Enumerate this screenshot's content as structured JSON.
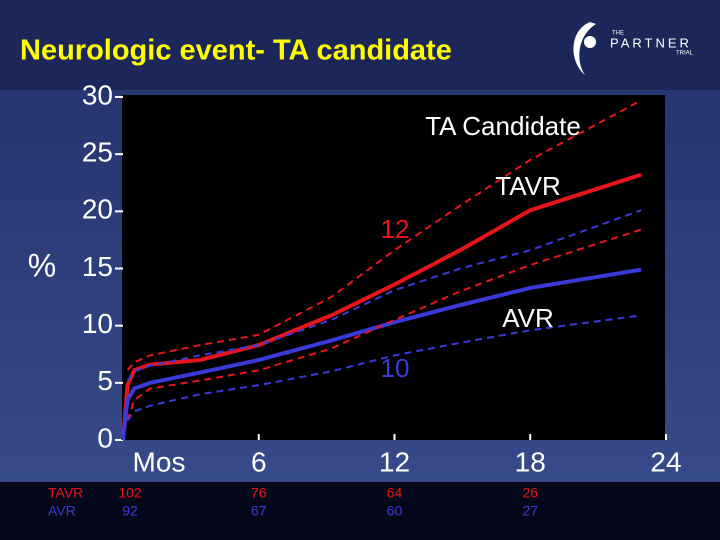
{
  "chart_data": {
    "type": "line",
    "title": "Neurologic event- TA candidate",
    "subtitle": "TA Candidate",
    "y_label": "%",
    "x_label": "Mos",
    "x": [
      0,
      0.2,
      0.5,
      1.2,
      3.4,
      6,
      9.2,
      12,
      14.9,
      18,
      22.9
    ],
    "series": [
      {
        "name": "TAVR",
        "color": "#e8141b",
        "dashed": false,
        "values": [
          0,
          4.8,
          6.1,
          6.6,
          7.0,
          8.3,
          10.9,
          13.6,
          16.6,
          20.1,
          23.2
        ]
      },
      {
        "name": "AVR",
        "color": "#3a3ad8",
        "dashed": false,
        "values": [
          0,
          3.5,
          4.5,
          5.0,
          5.9,
          7.0,
          8.7,
          10.3,
          11.8,
          13.3,
          14.9
        ]
      },
      {
        "color": "#e8141b",
        "dashed": true,
        "values": [
          null,
          6.1,
          6.8,
          7.4,
          8.3,
          9.2,
          12.5,
          16.6,
          20.5,
          24.5,
          29.7
        ]
      },
      {
        "color": "#e8141b",
        "dashed": true,
        "values": [
          null,
          1.7,
          3.5,
          4.5,
          5.2,
          6.1,
          8.0,
          10.5,
          13.0,
          15.3,
          18.4
        ]
      },
      {
        "color": "#3a3ad8",
        "dashed": true,
        "values": [
          null,
          5.2,
          6.0,
          6.5,
          7.4,
          8.3,
          10.5,
          13.1,
          15.0,
          16.6,
          20.1
        ]
      },
      {
        "color": "#3a3ad8",
        "dashed": true,
        "values": [
          null,
          1.7,
          2.5,
          3.0,
          4.0,
          4.8,
          6.0,
          7.4,
          8.5,
          9.6,
          10.9
        ]
      }
    ],
    "annotations": [
      {
        "text": "12",
        "color": "#e8141b"
      },
      {
        "text": "10",
        "color": "#3a3ad8"
      }
    ],
    "xlim": [
      0,
      24
    ],
    "xticks": [
      6,
      12,
      18,
      24
    ],
    "ylim": [
      0,
      30
    ],
    "yticks": [
      0,
      5,
      10,
      15,
      20,
      25,
      30
    ],
    "grid": false,
    "at_risk": {
      "x": [
        0,
        6,
        12,
        18
      ],
      "rows": [
        {
          "name": "TAVR",
          "color": "#e8141b",
          "values": [
            102,
            76,
            64,
            26
          ]
        },
        {
          "name": "AVR",
          "color": "#3a3ad8",
          "values": [
            92,
            67,
            60,
            27
          ]
        }
      ]
    }
  },
  "logo": {
    "top": "THE",
    "main": "PARTNER",
    "bottom": "TRIAL"
  }
}
